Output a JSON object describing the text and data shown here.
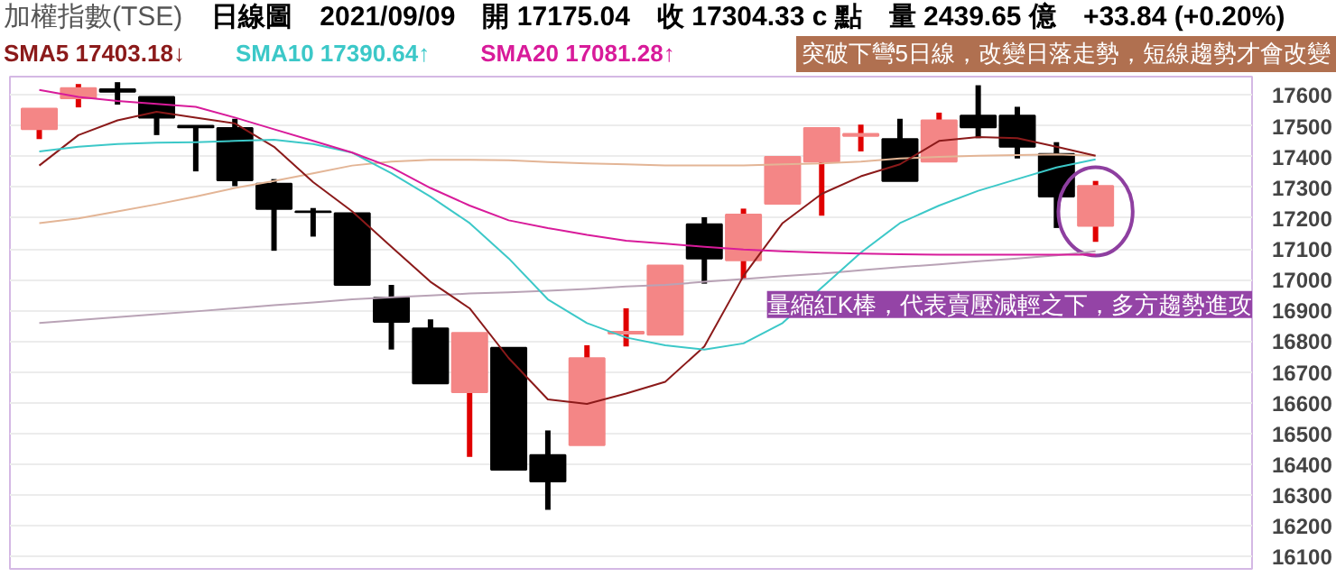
{
  "chart_data": {
    "type": "candlestick",
    "title": "加權指數(TSE)",
    "subtitle": "日線圖　2021/09/09　開 17175.04　收 17304.33 c 點　量 2439.65 億　+33.84 (+0.20%)",
    "categories": [
      null,
      null,
      null,
      null,
      null,
      null,
      null,
      null,
      null,
      null,
      null,
      null,
      null,
      null,
      null,
      null,
      null,
      null,
      null,
      null,
      null,
      null,
      null,
      null,
      null,
      null,
      null,
      null
    ],
    "ohlc": [
      [
        17489,
        17556,
        17457,
        17556
      ],
      [
        17590,
        17636,
        17560,
        17623
      ],
      [
        17619,
        17642,
        17569,
        17611
      ],
      [
        17594,
        17594,
        17470,
        17527
      ],
      [
        17500,
        17500,
        17352,
        17495
      ],
      [
        17493,
        17523,
        17304,
        17323
      ],
      [
        17312,
        17327,
        17094,
        17230
      ],
      [
        17222,
        17233,
        17140,
        17220
      ],
      [
        17216,
        17216,
        16983,
        16983
      ],
      [
        16941,
        16983,
        16773,
        16863
      ],
      [
        16842,
        16871,
        16663,
        16663
      ],
      [
        16634,
        16827,
        16424,
        16827
      ],
      [
        16779,
        16779,
        16382,
        16382
      ],
      [
        16430,
        16510,
        16252,
        16344
      ],
      [
        16462,
        16787,
        16462,
        16745
      ],
      [
        16825,
        16907,
        16783,
        16831
      ],
      [
        16821,
        17046,
        16821,
        17046
      ],
      [
        17180,
        17203,
        16987,
        17069
      ],
      [
        17063,
        17231,
        17002,
        17212
      ],
      [
        17247,
        17399,
        17247,
        17399
      ],
      [
        17384,
        17493,
        17208,
        17493
      ],
      [
        17467,
        17504,
        17417,
        17474
      ],
      [
        17457,
        17523,
        17321,
        17321
      ],
      [
        17384,
        17543,
        17384,
        17518
      ],
      [
        17533,
        17632,
        17460,
        17495
      ],
      [
        17533,
        17562,
        17394,
        17432
      ],
      [
        17409,
        17447,
        17168,
        17270
      ],
      [
        17175.04,
        17321,
        17123,
        17304.33
      ]
    ],
    "series": [
      {
        "type": "line",
        "color": "#b9a3b6",
        "values": [
          16859,
          16869,
          16878,
          16888,
          16897,
          16907,
          16917,
          16926,
          16936,
          16943,
          16949,
          16955,
          16959,
          16964,
          16970,
          16978,
          16983,
          16993,
          17002,
          17012,
          17020,
          17031,
          17041,
          17050,
          17060,
          17069,
          17079,
          17092
        ]
      },
      {
        "type": "line",
        "color": "#e3b596",
        "values": [
          17184,
          17199,
          17222,
          17245,
          17270,
          17298,
          17321,
          17346,
          17371,
          17384,
          17390,
          17390,
          17388,
          17382,
          17378,
          17375,
          17371,
          17371,
          17371,
          17375,
          17378,
          17384,
          17394,
          17399,
          17403,
          17405,
          17407,
          17403
        ]
      },
      {
        "type": "line",
        "name": "SMA5 17403.18↓",
        "color": "#8b1a1a",
        "values": [
          17371,
          17470,
          17518,
          17546,
          17527,
          17508,
          17432,
          17317,
          17222,
          17107,
          16993,
          16907,
          16745,
          16611,
          16596,
          16630,
          16668,
          16783,
          17012,
          17184,
          17279,
          17336,
          17375,
          17451,
          17464,
          17460,
          17432,
          17403
        ]
      },
      {
        "type": "line",
        "name": "SMA10 17390.64↑",
        "color": "#3cc8c8",
        "values": [
          17417,
          17432,
          17441,
          17445,
          17447,
          17451,
          17455,
          17441,
          17413,
          17346,
          17270,
          17184,
          17069,
          16936,
          16859,
          16812,
          16787,
          16773,
          16793,
          16859,
          16974,
          17088,
          17184,
          17241,
          17289,
          17327,
          17365,
          17391
        ]
      },
      {
        "type": "line",
        "name": "SMA20 17081.28↑",
        "color": "#d81b9a",
        "values": [
          17617,
          17594,
          17581,
          17571,
          17562,
          17527,
          17489,
          17451,
          17413,
          17365,
          17298,
          17241,
          17193,
          17168,
          17146,
          17127,
          17117,
          17107,
          17098,
          17092,
          17088,
          17085,
          17083,
          17081,
          17081,
          17081,
          17081,
          17081
        ]
      }
    ],
    "ylim": [
      16060,
      17660
    ],
    "yticks": [
      16100,
      16200,
      16300,
      16400,
      16500,
      16600,
      16700,
      16800,
      16900,
      17000,
      17100,
      17200,
      17300,
      17400,
      17500,
      17600
    ],
    "grid": "y",
    "tick_labels": "y",
    "annotations": [
      "突破下彎5日線，改變日落走勢，短線趨勢才會改變",
      "量縮紅K棒，代表賣壓減輕之下，多方趨勢進攻"
    ]
  }
}
